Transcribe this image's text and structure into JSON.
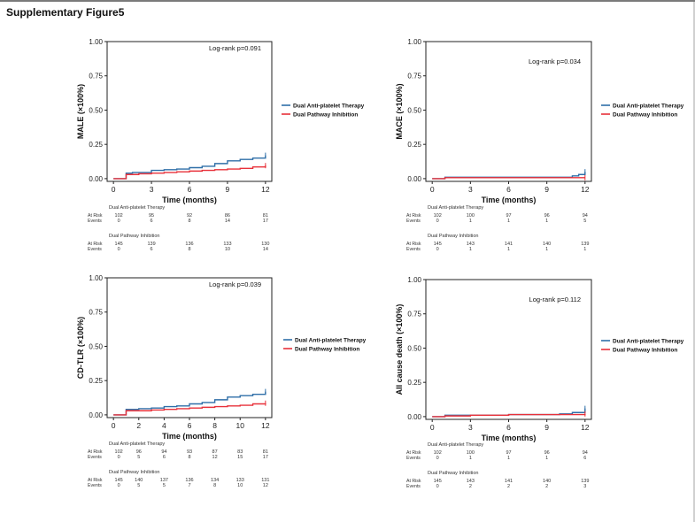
{
  "page": {
    "title": "Supplementary Figure5"
  },
  "chart_data": [
    {
      "type": "line",
      "ylabel": "MALE (×100%)",
      "xlabel": "Time (months)",
      "annotation": "Log-rank p=0.091",
      "xticks": [
        0,
        3,
        6,
        9,
        12
      ],
      "xlim": [
        -0.5,
        12.5
      ],
      "ylim": [
        -0.02,
        1.0
      ],
      "yticks": [
        "0.00",
        "0.25",
        "0.50",
        "0.75",
        "1.00"
      ],
      "series": [
        {
          "name": "Dual Anti-platelet Therapy",
          "color": "#2f6fa8",
          "x": [
            0,
            1,
            1.5,
            3,
            4,
            5,
            6,
            7,
            8,
            9,
            10,
            11,
            12
          ],
          "y": [
            0,
            0.04,
            0.045,
            0.06,
            0.065,
            0.07,
            0.08,
            0.09,
            0.11,
            0.13,
            0.14,
            0.15,
            0.17
          ]
        },
        {
          "name": "Dual  Pathway Inhibition",
          "color": "#e8313a",
          "x": [
            0,
            1,
            2,
            3,
            4,
            5,
            6,
            7,
            8,
            9,
            10,
            11,
            12
          ],
          "y": [
            0,
            0.03,
            0.035,
            0.04,
            0.045,
            0.05,
            0.055,
            0.06,
            0.065,
            0.07,
            0.075,
            0.085,
            0.095
          ]
        }
      ],
      "risk_table": {
        "times": [
          "0",
          "3",
          "6",
          "9",
          "12"
        ],
        "groups": [
          {
            "name": "Dual Anti-platelet Therapy",
            "at_risk": [
              "102",
              "95",
              "92",
              "86",
              "81"
            ],
            "events": [
              "0",
              "6",
              "8",
              "14",
              "17"
            ]
          },
          {
            "name": "Dual  Pathway Inhibition",
            "at_risk": [
              "145",
              "139",
              "136",
              "133",
              "130"
            ],
            "events": [
              "0",
              "6",
              "8",
              "10",
              "14"
            ]
          }
        ]
      }
    },
    {
      "type": "line",
      "ylabel": "MACE (×100%)",
      "xlabel": "Time (months)",
      "annotation": "Log-rank p=0.034",
      "xticks": [
        0,
        3,
        6,
        9,
        12
      ],
      "xlim": [
        -0.5,
        12.5
      ],
      "ylim": [
        -0.02,
        1.0
      ],
      "yticks": [
        "0.00",
        "0.25",
        "0.50",
        "0.75",
        "1.00"
      ],
      "series": [
        {
          "name": "Dual Anti-platelet Therapy",
          "color": "#2f6fa8",
          "x": [
            0,
            1,
            3,
            6,
            9,
            10,
            11,
            11.5,
            12
          ],
          "y": [
            0,
            0.01,
            0.01,
            0.01,
            0.01,
            0.01,
            0.02,
            0.03,
            0.05
          ]
        },
        {
          "name": "Dual  Pathway Inhibition",
          "color": "#e8313a",
          "x": [
            0,
            1,
            3,
            6,
            9,
            12
          ],
          "y": [
            0,
            0.007,
            0.007,
            0.007,
            0.007,
            0.007
          ]
        }
      ],
      "risk_table": {
        "times": [
          "0",
          "3",
          "6",
          "9",
          "12"
        ],
        "groups": [
          {
            "name": "Dual Anti-platelet Therapy",
            "at_risk": [
              "102",
              "100",
              "97",
              "96",
              "94"
            ],
            "events": [
              "0",
              "1",
              "1",
              "1",
              "5"
            ]
          },
          {
            "name": "Dual  Pathway Inhibition",
            "at_risk": [
              "145",
              "143",
              "141",
              "140",
              "139"
            ],
            "events": [
              "0",
              "1",
              "1",
              "1",
              "1"
            ]
          }
        ]
      }
    },
    {
      "type": "line",
      "ylabel": "CD-TLR (×100%)",
      "xlabel": "Time (months)",
      "annotation": "Log-rank p=0.039",
      "xticks": [
        0,
        2,
        4,
        6,
        8,
        10,
        12
      ],
      "xlim": [
        -0.5,
        12.5
      ],
      "ylim": [
        -0.02,
        1.0
      ],
      "yticks": [
        "0.00",
        "0.25",
        "0.50",
        "0.75",
        "1.00"
      ],
      "series": [
        {
          "name": "Dual Anti-platelet Therapy",
          "color": "#2f6fa8",
          "x": [
            0,
            1,
            2,
            3,
            4,
            5,
            6,
            7,
            8,
            9,
            10,
            11,
            12
          ],
          "y": [
            0,
            0.04,
            0.045,
            0.05,
            0.06,
            0.065,
            0.08,
            0.09,
            0.11,
            0.13,
            0.14,
            0.15,
            0.17
          ]
        },
        {
          "name": "Dual  Pathway Inhibition",
          "color": "#e8313a",
          "x": [
            0,
            1,
            2,
            3,
            4,
            5,
            6,
            7,
            8,
            9,
            10,
            11,
            12
          ],
          "y": [
            0,
            0.03,
            0.03,
            0.035,
            0.04,
            0.045,
            0.05,
            0.055,
            0.06,
            0.065,
            0.07,
            0.08,
            0.085
          ]
        }
      ],
      "risk_table": {
        "times": [
          "0",
          "2",
          "4",
          "6",
          "8",
          "10",
          "12"
        ],
        "groups": [
          {
            "name": "Dual Anti-platelet Therapy",
            "at_risk": [
              "102",
              "96",
              "94",
              "93",
              "87",
              "83",
              "81"
            ],
            "events": [
              "0",
              "5",
              "6",
              "8",
              "12",
              "15",
              "17"
            ]
          },
          {
            "name": "Dual  Pathway Inhibition",
            "at_risk": [
              "145",
              "140",
              "137",
              "136",
              "134",
              "133",
              "131"
            ],
            "events": [
              "0",
              "5",
              "5",
              "7",
              "8",
              "10",
              "12"
            ]
          }
        ]
      }
    },
    {
      "type": "line",
      "ylabel": "All cause death (×100%)",
      "xlabel": "Time (months)",
      "annotation": "Log-rank p=0.112",
      "xticks": [
        0,
        3,
        6,
        9,
        12
      ],
      "xlim": [
        -0.5,
        12.5
      ],
      "ylim": [
        -0.02,
        1.0
      ],
      "yticks": [
        "0.00",
        "0.25",
        "0.50",
        "0.75",
        "1.00"
      ],
      "series": [
        {
          "name": "Dual Anti-platelet Therapy",
          "color": "#2f6fa8",
          "x": [
            0,
            1,
            3,
            6,
            9,
            10,
            11,
            12
          ],
          "y": [
            0,
            0.01,
            0.01,
            0.015,
            0.015,
            0.02,
            0.03,
            0.06
          ]
        },
        {
          "name": "Dual  Pathway Inhibition",
          "color": "#e8313a",
          "x": [
            0,
            1,
            3,
            6,
            9,
            12
          ],
          "y": [
            0,
            0.005,
            0.01,
            0.015,
            0.015,
            0.02
          ]
        }
      ],
      "risk_table": {
        "times": [
          "0",
          "3",
          "6",
          "9",
          "12"
        ],
        "groups": [
          {
            "name": "Dual Anti-platelet Therapy",
            "at_risk": [
              "102",
              "100",
              "97",
              "96",
              "94"
            ],
            "events": [
              "0",
              "1",
              "1",
              "1",
              "6"
            ]
          },
          {
            "name": "Dual  Pathway Inhibition",
            "at_risk": [
              "145",
              "143",
              "141",
              "140",
              "139"
            ],
            "events": [
              "0",
              "2",
              "2",
              "2",
              "3"
            ]
          }
        ]
      }
    }
  ],
  "risk_labels": {
    "at_risk": "At Risk",
    "events": "Events"
  }
}
